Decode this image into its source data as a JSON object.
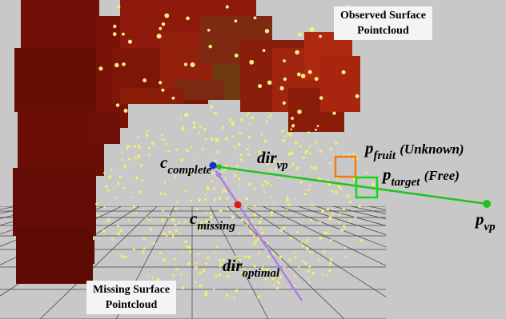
{
  "annotations": {
    "observed": {
      "line1": "Observed Surface",
      "line2": "Pointcloud"
    },
    "missing": {
      "line1": "Missing Surface",
      "line2": "Pointcloud"
    },
    "c_complete": {
      "main": "c",
      "sub": "complete"
    },
    "c_missing": {
      "main": "c",
      "sub": "missing"
    },
    "dir_vp": {
      "main": "dir",
      "sub": "vp"
    },
    "dir_optimal": {
      "main": "dir",
      "sub": "optimal"
    },
    "p_fruit": {
      "main": "p",
      "sub": "fruit",
      "note": "(Unknown)"
    },
    "p_target": {
      "main": "p",
      "sub": "target",
      "note": "(Free)"
    },
    "p_vp": {
      "main": "p",
      "sub": "vp"
    }
  },
  "colors": {
    "background": "#c8c8c8",
    "fruit_dark": "#6b0d05",
    "fruit_red": "#9c1c0c",
    "point_yellow": "#f2f06a",
    "arrow_green": "#1fc41f",
    "arrow_purple": "#b07ee8",
    "point_blue": "#1a2fd0",
    "point_red": "#e01818",
    "box_orange": "#f07a14",
    "box_green": "#16d616"
  }
}
